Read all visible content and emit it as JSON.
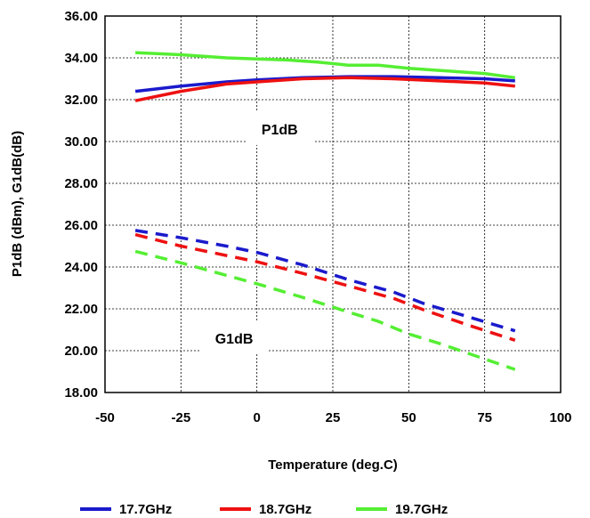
{
  "chart_data": {
    "type": "line",
    "title": "",
    "xlabel": "Temperature (deg.C)",
    "ylabel": "P1dB (dBm), G1dB(dB)",
    "xlim": [
      -50,
      100
    ],
    "ylim": [
      18,
      36
    ],
    "x_ticks": [
      "-50",
      "-25",
      "0",
      "25",
      "50",
      "75",
      "100"
    ],
    "y_ticks": [
      "18.00",
      "20.00",
      "22.00",
      "24.00",
      "26.00",
      "28.00",
      "30.00",
      "32.00",
      "34.00",
      "36.00"
    ],
    "grid": true,
    "legend_position": "bottom",
    "annotations": [
      {
        "text": "P1dB",
        "x": 7.5,
        "y": 30.6
      },
      {
        "text": "G1dB",
        "x": -7.5,
        "y": 20.6
      }
    ],
    "series": [
      {
        "name": "17.7GHz",
        "metric": "P1dB",
        "style": "solid",
        "color": "#1a1acc",
        "points": [
          [
            -40,
            32.4
          ],
          [
            -25,
            32.65
          ],
          [
            -10,
            32.85
          ],
          [
            0,
            32.95
          ],
          [
            15,
            33.05
          ],
          [
            30,
            33.1
          ],
          [
            45,
            33.1
          ],
          [
            60,
            33.05
          ],
          [
            75,
            33.0
          ],
          [
            85,
            32.9
          ]
        ]
      },
      {
        "name": "18.7GHz",
        "metric": "P1dB",
        "style": "solid",
        "color": "#ee1111",
        "points": [
          [
            -40,
            31.95
          ],
          [
            -25,
            32.4
          ],
          [
            -10,
            32.75
          ],
          [
            0,
            32.85
          ],
          [
            15,
            33.0
          ],
          [
            30,
            33.05
          ],
          [
            45,
            33.0
          ],
          [
            60,
            32.9
          ],
          [
            75,
            32.8
          ],
          [
            85,
            32.65
          ]
        ]
      },
      {
        "name": "19.7GHz",
        "metric": "P1dB",
        "style": "solid",
        "color": "#55ee33",
        "points": [
          [
            -40,
            34.25
          ],
          [
            -25,
            34.15
          ],
          [
            -10,
            34.0
          ],
          [
            0,
            33.95
          ],
          [
            10,
            33.9
          ],
          [
            20,
            33.8
          ],
          [
            30,
            33.65
          ],
          [
            40,
            33.65
          ],
          [
            50,
            33.5
          ],
          [
            60,
            33.4
          ],
          [
            75,
            33.25
          ],
          [
            85,
            33.05
          ]
        ]
      },
      {
        "name": "17.7GHz",
        "metric": "G1dB",
        "style": "dashed",
        "color": "#1a1acc",
        "points": [
          [
            -40,
            25.75
          ],
          [
            -25,
            25.4
          ],
          [
            -10,
            25.0
          ],
          [
            0,
            24.7
          ],
          [
            15,
            24.1
          ],
          [
            30,
            23.4
          ],
          [
            45,
            22.8
          ],
          [
            55,
            22.25
          ],
          [
            70,
            21.6
          ],
          [
            85,
            20.95
          ]
        ]
      },
      {
        "name": "18.7GHz",
        "metric": "G1dB",
        "style": "dashed",
        "color": "#ee1111",
        "points": [
          [
            -40,
            25.55
          ],
          [
            -25,
            25.0
          ],
          [
            -10,
            24.55
          ],
          [
            0,
            24.25
          ],
          [
            15,
            23.7
          ],
          [
            30,
            23.1
          ],
          [
            45,
            22.5
          ],
          [
            55,
            21.95
          ],
          [
            70,
            21.2
          ],
          [
            85,
            20.5
          ]
        ]
      },
      {
        "name": "19.7GHz",
        "metric": "G1dB",
        "style": "dashed",
        "color": "#55ee33",
        "points": [
          [
            -40,
            24.75
          ],
          [
            -25,
            24.2
          ],
          [
            -10,
            23.6
          ],
          [
            0,
            23.2
          ],
          [
            15,
            22.55
          ],
          [
            30,
            21.85
          ],
          [
            40,
            21.4
          ],
          [
            50,
            20.8
          ],
          [
            60,
            20.35
          ],
          [
            75,
            19.6
          ],
          [
            85,
            19.1
          ]
        ]
      }
    ],
    "legend": [
      {
        "name": "17.7GHz",
        "color": "#1a1acc"
      },
      {
        "name": "18.7GHz",
        "color": "#ee1111"
      },
      {
        "name": "19.7GHz",
        "color": "#55ee33"
      }
    ]
  }
}
